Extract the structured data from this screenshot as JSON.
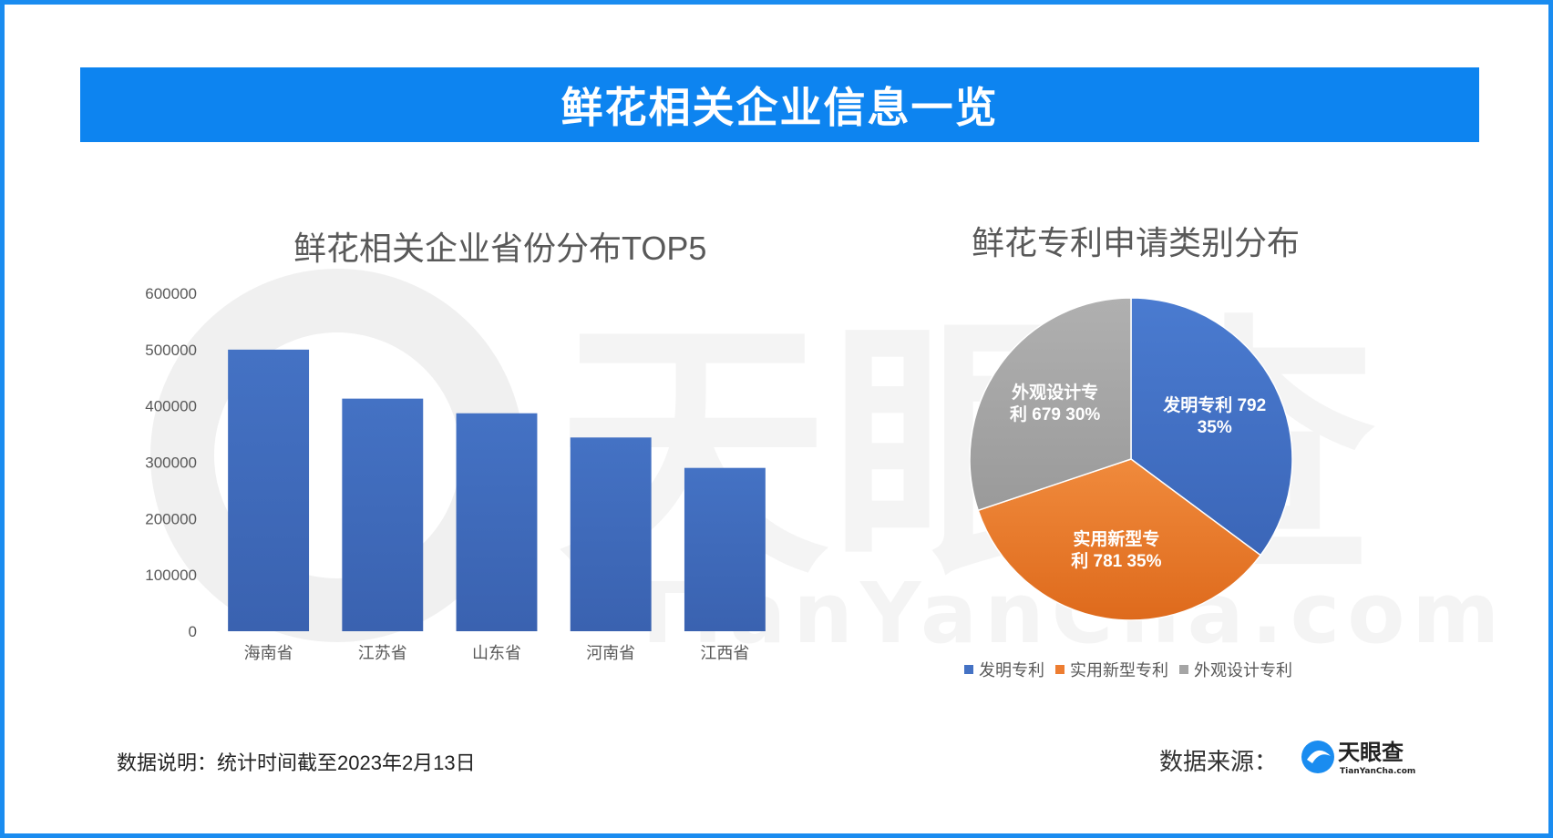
{
  "header": {
    "title": "鲜花相关企业信息一览"
  },
  "watermark": {
    "text": "天眼查",
    "subtext": "TianYanCha.com"
  },
  "colors": {
    "frame": "#1a8cf0",
    "title_bar": "#0d84f0",
    "bar": "#4472c4",
    "invention": "#4472c4",
    "utility": "#ed7d31",
    "design": "#a5a5a5",
    "logo_blue": "#1a8cf0"
  },
  "chart_data": [
    {
      "type": "bar",
      "title": "鲜花相关企业省份分布TOP5",
      "categories": [
        "海南省",
        "江苏省",
        "山东省",
        "河南省",
        "江西省"
      ],
      "values": [
        500000,
        413000,
        387000,
        344000,
        290000
      ],
      "ylim": [
        0,
        600000
      ],
      "yticks": [
        "0",
        "100000",
        "200000",
        "300000",
        "400000",
        "500000",
        "600000"
      ],
      "xlabel": "",
      "ylabel": "",
      "grid": false
    },
    {
      "type": "pie",
      "title": "鲜花专利申请类别分布",
      "slices": [
        {
          "name": "发明专利",
          "value": 792,
          "percent": "35%",
          "label": "发明专利 792\n35%"
        },
        {
          "name": "实用新型专利",
          "value": 781,
          "percent": "35%",
          "label": "实用新型专\n利 781 35%"
        },
        {
          "name": "外观设计专利",
          "value": 679,
          "percent": "30%",
          "label": "外观设计专\n利 679 30%"
        }
      ],
      "legend": [
        "发明专利",
        "实用新型专利",
        "外观设计专利"
      ],
      "legend_position": "bottom"
    }
  ],
  "footer": {
    "note": "数据说明：统计时间截至2023年2月13日",
    "source_label": "数据来源：",
    "logo_text": "天眼查",
    "logo_subtext": "TianYanCha.com"
  }
}
